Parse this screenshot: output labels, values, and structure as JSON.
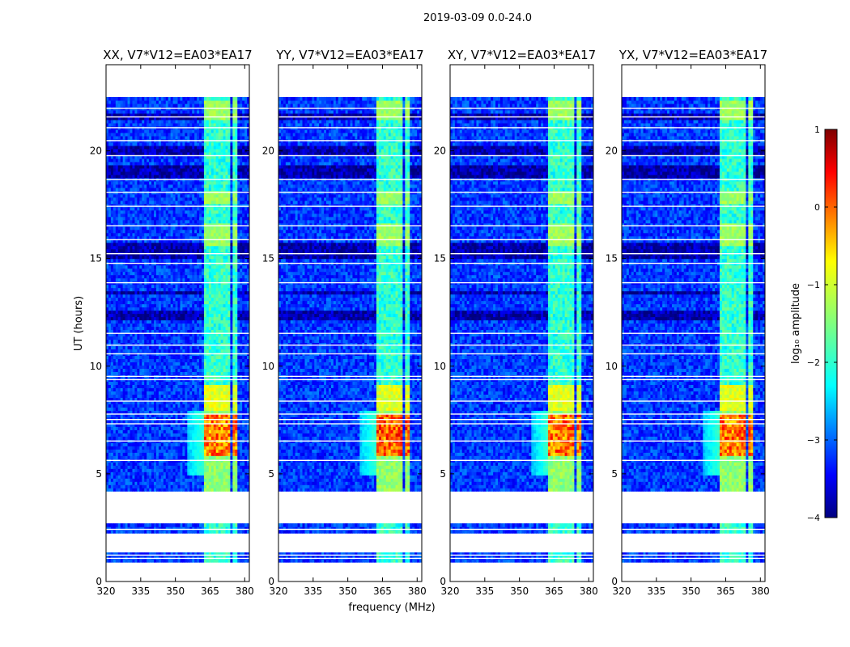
{
  "chart_data": {
    "type": "heatmap",
    "suptitle": "2019-03-09 0.0-24.0",
    "xlabel": "frequency (MHz)",
    "ylabel": "UT (hours)",
    "xlim": [
      320,
      382
    ],
    "ylim": [
      0,
      24
    ],
    "xticks": [
      "320",
      "335",
      "350",
      "365",
      "380"
    ],
    "yticks": [
      "0",
      "5",
      "10",
      "15",
      "20"
    ],
    "colorbar": {
      "label": "log₁₀ amplitude",
      "range": [
        -4,
        1
      ],
      "ticks": [
        "1",
        "0",
        "−1",
        "−2",
        "−3",
        "−4"
      ],
      "colormap": "jet",
      "stops": [
        "#00007f",
        "#0000ff",
        "#007fff",
        "#00ffff",
        "#7fff7f",
        "#ffff00",
        "#ff7f00",
        "#ff0000",
        "#7f0000"
      ]
    },
    "panels": [
      {
        "title": "XX, V7*V12=EA03*EA17",
        "peak_amp": 0.25
      },
      {
        "title": "YY, V7*V12=EA03*EA17",
        "peak_amp": 0.4
      },
      {
        "title": "XY, V7*V12=EA03*EA17",
        "peak_amp": 0.3
      },
      {
        "title": "YX, V7*V12=EA03*EA17",
        "peak_amp": 0.3
      }
    ],
    "data_time_range_hours": [
      0.9,
      22.5
    ],
    "rfi_band_mhz": [
      362,
      377
    ],
    "bright_time_range_hours": [
      4.2,
      9.2
    ],
    "brightest_time_hours": [
      5.8,
      7.8
    ],
    "baseline_log_amp": -3.2
  }
}
